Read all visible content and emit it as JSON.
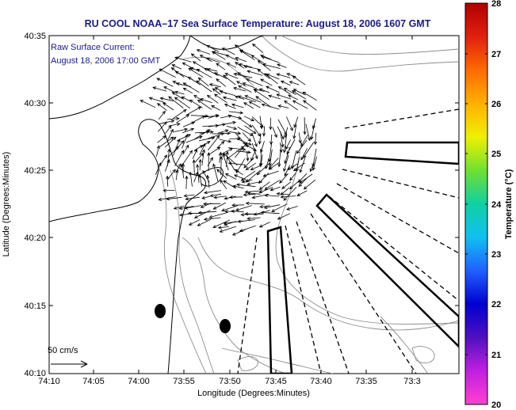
{
  "title": "RU COOL  NOAA–17  Sea Surface Temperature:  August 18, 2006 1607 GMT",
  "current_label": "Raw Surface Current:",
  "current_time": "August 18, 2006 17:00 GMT",
  "scale_label": "50 cm/s",
  "x_axis": {
    "label": "Longitude (Degrees:Minutes)",
    "ticks": [
      "74:10",
      "74:05",
      "74:00",
      "73:55",
      "73:50",
      "73:45",
      "73:40",
      "73:35",
      "73:3"
    ]
  },
  "y_axis": {
    "label": "Latitude (Degrees:Minutes)",
    "ticks": [
      "40:35",
      "40:30",
      "40:25",
      "40:20",
      "40:15",
      "40:10"
    ]
  },
  "colorbar": {
    "label": "Temperature (°C)",
    "ticks": [
      "28",
      "27",
      "26",
      "25",
      "24",
      "23",
      "22",
      "21",
      "20"
    ],
    "colors": [
      "#b00000",
      "#e02010",
      "#ff6a00",
      "#ffb000",
      "#f0f000",
      "#70e030",
      "#10d0a0",
      "#10c0f0",
      "#2060ff",
      "#0000d0",
      "#5010c0",
      "#c020e0",
      "#ff40d0"
    ]
  },
  "colors": {
    "title_text": "#1a1a8c",
    "land_outline": "#000000",
    "bathymetry": "#8c8c8c"
  }
}
